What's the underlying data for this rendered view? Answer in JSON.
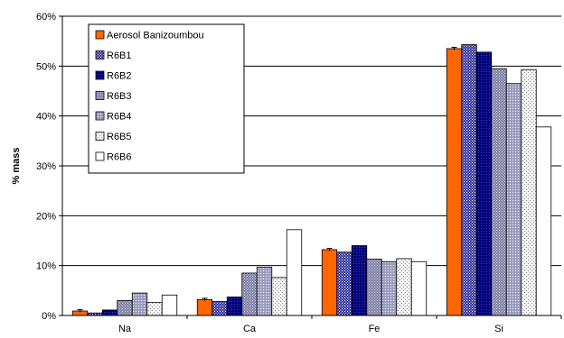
{
  "chart_data": {
    "type": "bar",
    "title": "",
    "xlabel": "",
    "ylabel": "% mass",
    "ylim": [
      0,
      60
    ],
    "yticks": [
      0,
      10,
      20,
      30,
      40,
      50,
      60
    ],
    "ytick_labels": [
      "0%",
      "10%",
      "20%",
      "30%",
      "40%",
      "50%",
      "60%"
    ],
    "grid": "horizontal",
    "legend_placement": "top-left",
    "categories": [
      "Na",
      "Ca",
      "Fe",
      "Si"
    ],
    "series": [
      {
        "name": "Aerosol Banizoumbou",
        "color": "#ff6600",
        "pattern": "solid",
        "values": [
          0.9,
          3.2,
          13.2,
          53.5
        ]
      },
      {
        "name": "R6B1",
        "color": "#3a3ab0",
        "pattern": "dots-dense",
        "values": [
          0.5,
          2.8,
          12.7,
          54.3
        ]
      },
      {
        "name": "R6B2",
        "color": "#000080",
        "pattern": "navy",
        "values": [
          1.1,
          3.7,
          14.0,
          52.8
        ]
      },
      {
        "name": "R6B3",
        "color": "#8a8ab0",
        "pattern": "gray-dots",
        "values": [
          3.0,
          8.5,
          11.3,
          49.5
        ]
      },
      {
        "name": "R6B4",
        "color": "#9c9cc4",
        "pattern": "light-gray-dots",
        "values": [
          4.5,
          9.7,
          10.8,
          46.5
        ]
      },
      {
        "name": "R6B5",
        "color": "#dcdcdc",
        "pattern": "sparse-dots",
        "values": [
          2.6,
          7.6,
          11.4,
          49.3
        ]
      },
      {
        "name": "R6B6",
        "color": "#ffffff",
        "pattern": "white",
        "values": [
          4.1,
          17.2,
          10.8,
          37.8
        ]
      }
    ]
  }
}
